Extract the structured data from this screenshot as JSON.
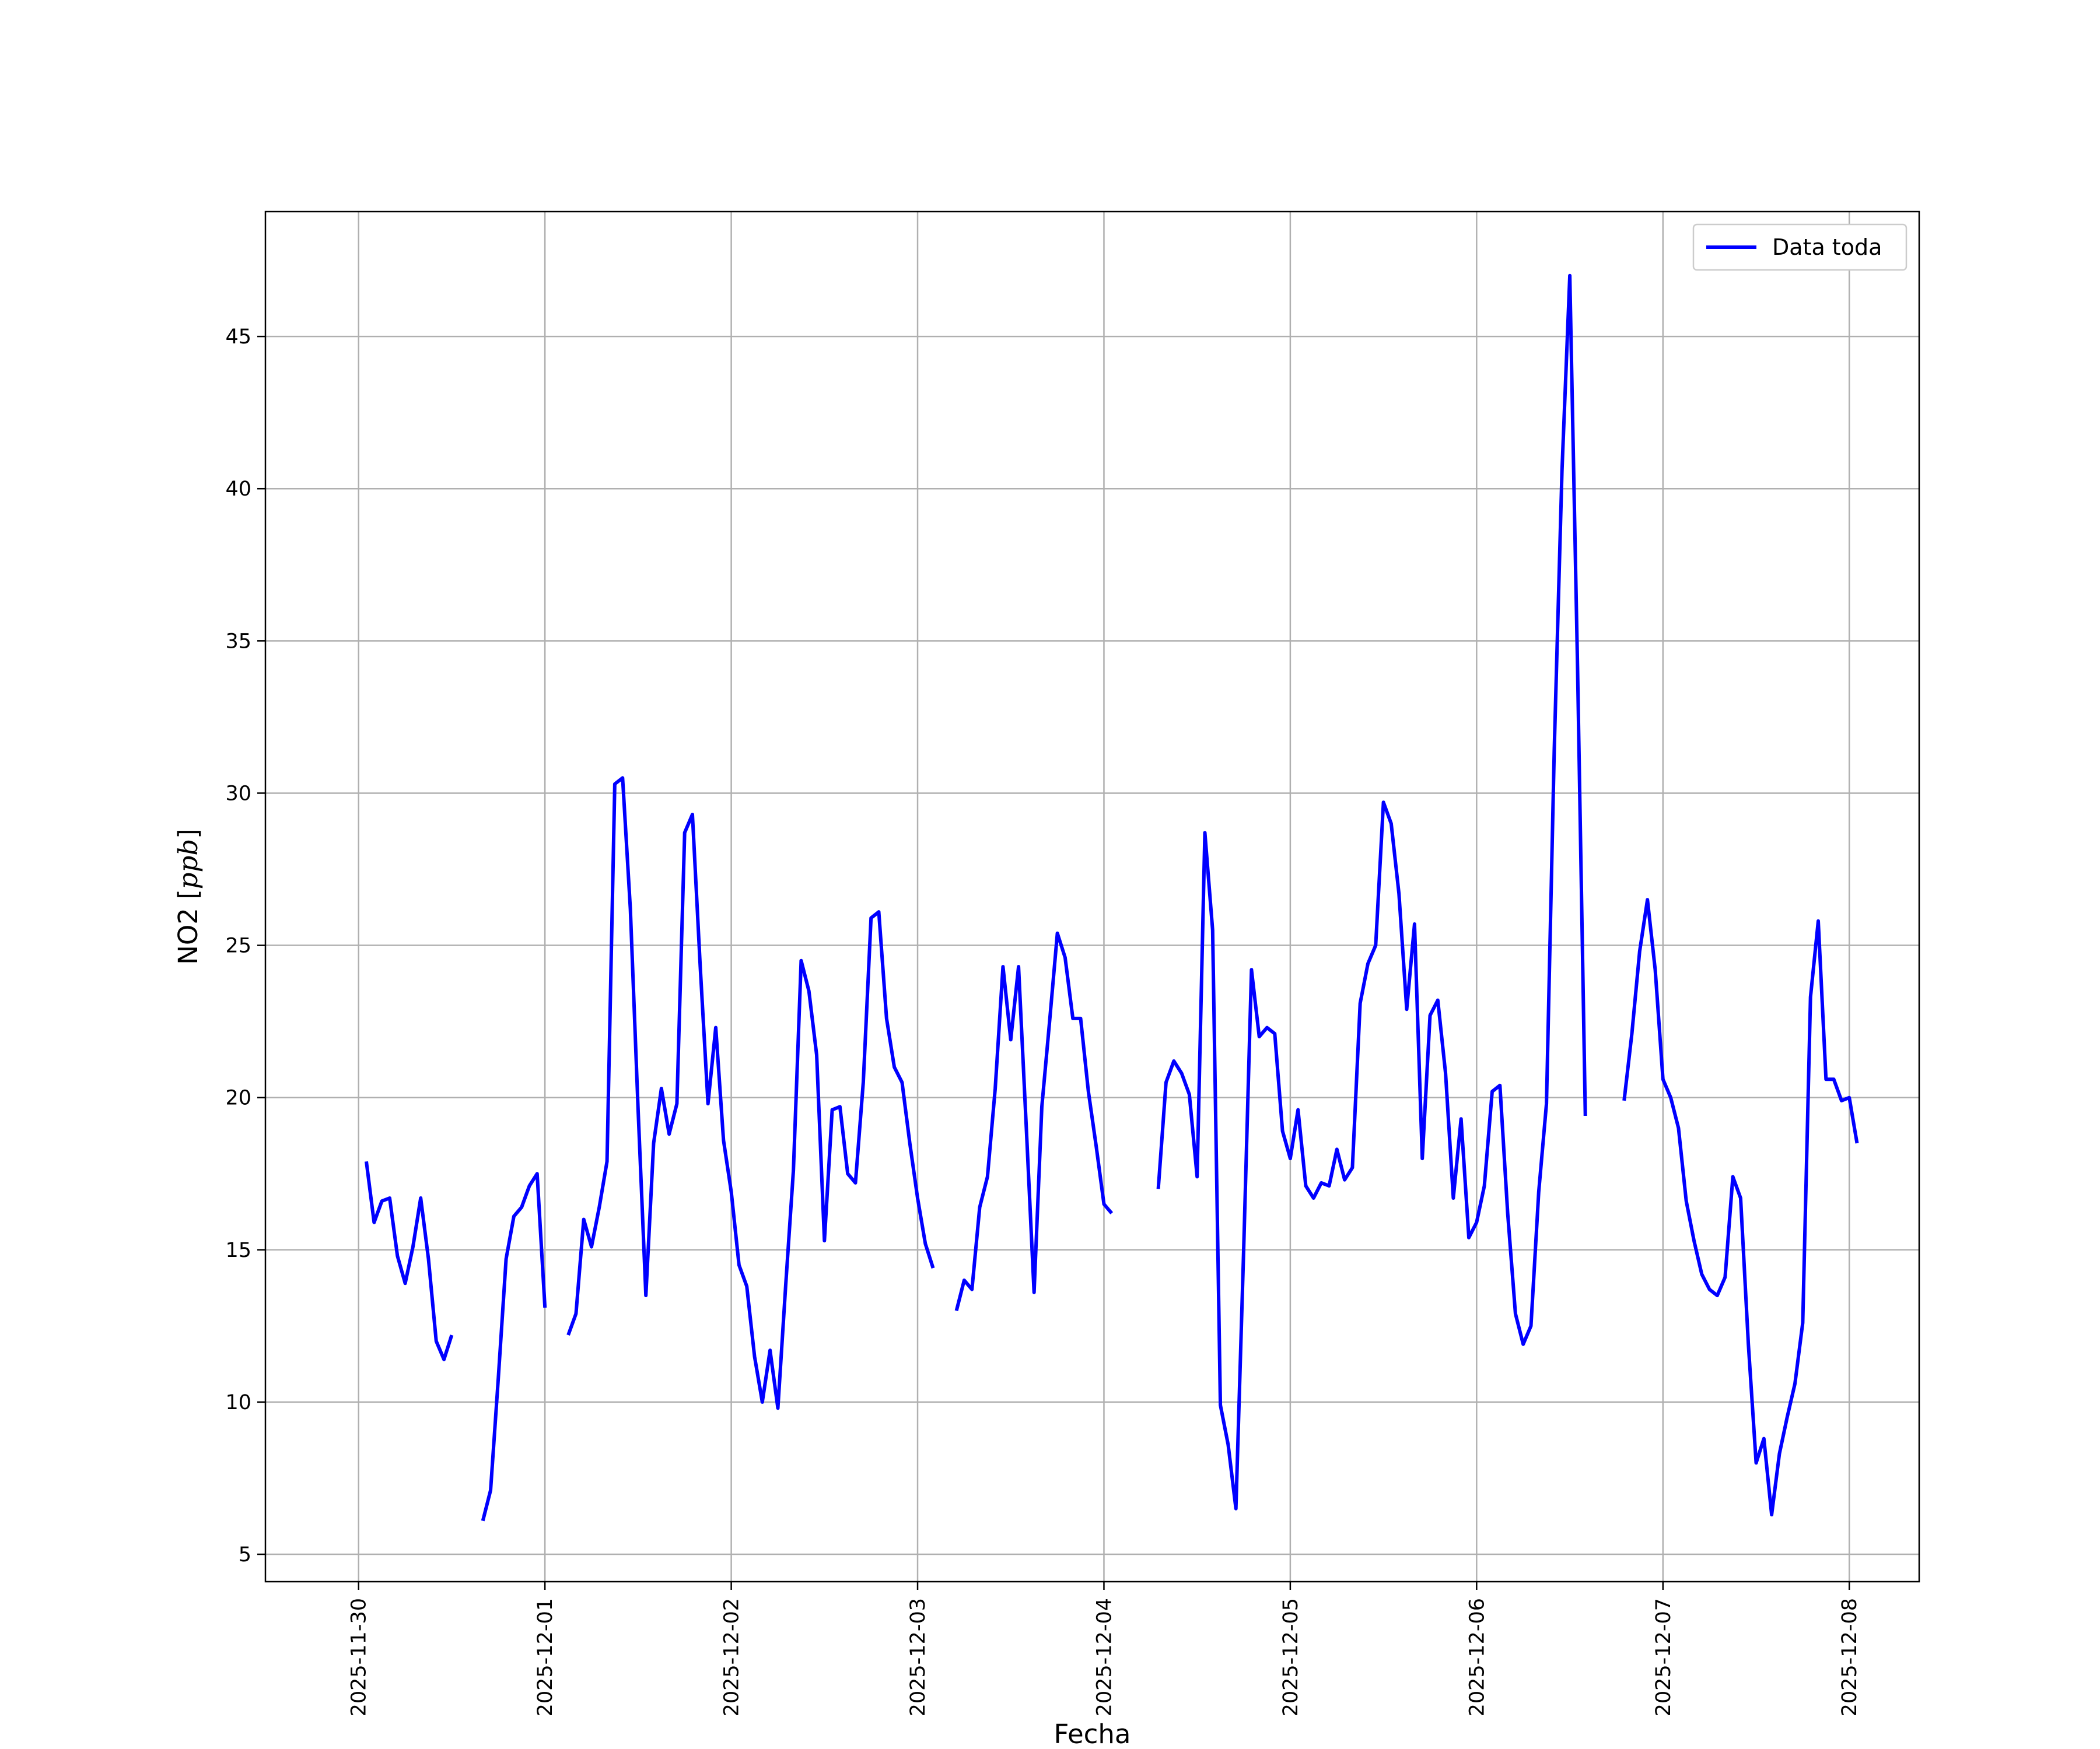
{
  "chart_data": {
    "type": "line",
    "xlabel": "Fecha",
    "ylabel_main": "NO2 [",
    "ylabel_unit": "ppb",
    "ylabel_close": "]",
    "xlim": [
      "2025-11-29T12:00",
      "2025-12-08T09:00"
    ],
    "ylim": [
      4.1,
      49.1
    ],
    "x_tick_labels": [
      "2025-11-30",
      "2025-12-01",
      "2025-12-02",
      "2025-12-03",
      "2025-12-04",
      "2025-12-05",
      "2025-12-06",
      "2025-12-07",
      "2025-12-08"
    ],
    "y_tick_values": [
      5,
      10,
      15,
      20,
      25,
      30,
      35,
      40,
      45
    ],
    "grid": true,
    "legend_position": "top-right",
    "series": [
      {
        "name": "Data toda",
        "color": "#0000ff",
        "segments": [
          [
            [
              "2025-11-30T01:00",
              17.9
            ],
            [
              "2025-11-30T02:00",
              15.9
            ],
            [
              "2025-11-30T03:00",
              16.6
            ],
            [
              "2025-11-30T04:00",
              16.7
            ],
            [
              "2025-11-30T05:00",
              14.8
            ],
            [
              "2025-11-30T06:00",
              13.9
            ],
            [
              "2025-11-30T07:00",
              15.1
            ],
            [
              "2025-11-30T08:00",
              16.7
            ],
            [
              "2025-11-30T09:00",
              14.7
            ],
            [
              "2025-11-30T10:00",
              12.0
            ],
            [
              "2025-11-30T11:00",
              11.4
            ],
            [
              "2025-11-30T12:00",
              12.2
            ]
          ],
          [
            [
              "2025-11-30T16:00",
              6.1
            ],
            [
              "2025-11-30T17:00",
              7.1
            ],
            [
              "2025-11-30T18:00",
              10.8
            ],
            [
              "2025-11-30T19:00",
              14.7
            ],
            [
              "2025-11-30T20:00",
              16.1
            ],
            [
              "2025-11-30T21:00",
              16.4
            ],
            [
              "2025-11-30T22:00",
              17.1
            ],
            [
              "2025-11-30T23:00",
              17.5
            ],
            [
              "2025-12-01T00:00",
              13.1
            ]
          ],
          [
            [
              "2025-12-01T03:00",
              12.2
            ],
            [
              "2025-12-01T04:00",
              12.9
            ],
            [
              "2025-12-01T05:00",
              16.0
            ],
            [
              "2025-12-01T06:00",
              15.1
            ],
            [
              "2025-12-01T07:00",
              16.4
            ],
            [
              "2025-12-01T08:00",
              17.9
            ],
            [
              "2025-12-01T09:00",
              30.3
            ],
            [
              "2025-12-01T10:00",
              30.5
            ],
            [
              "2025-12-01T11:00",
              26.2
            ],
            [
              "2025-12-01T12:00",
              19.6
            ],
            [
              "2025-12-01T13:00",
              13.5
            ],
            [
              "2025-12-01T14:00",
              18.5
            ],
            [
              "2025-12-01T15:00",
              20.3
            ],
            [
              "2025-12-01T16:00",
              18.8
            ],
            [
              "2025-12-01T17:00",
              19.8
            ],
            [
              "2025-12-01T18:00",
              28.7
            ],
            [
              "2025-12-01T19:00",
              29.3
            ],
            [
              "2025-12-01T20:00",
              24.3
            ],
            [
              "2025-12-01T21:00",
              19.8
            ],
            [
              "2025-12-01T22:00",
              22.3
            ],
            [
              "2025-12-01T23:00",
              18.6
            ],
            [
              "2025-12-02T00:00",
              16.9
            ],
            [
              "2025-12-02T01:00",
              14.5
            ],
            [
              "2025-12-02T02:00",
              13.8
            ],
            [
              "2025-12-02T03:00",
              11.5
            ],
            [
              "2025-12-02T04:00",
              10.0
            ],
            [
              "2025-12-02T05:00",
              11.7
            ],
            [
              "2025-12-02T06:00",
              9.8
            ],
            [
              "2025-12-02T07:00",
              13.8
            ],
            [
              "2025-12-02T08:00",
              17.6
            ],
            [
              "2025-12-02T09:00",
              24.5
            ],
            [
              "2025-12-02T10:00",
              23.5
            ],
            [
              "2025-12-02T11:00",
              21.4
            ],
            [
              "2025-12-02T12:00",
              15.3
            ],
            [
              "2025-12-02T13:00",
              19.6
            ],
            [
              "2025-12-02T14:00",
              19.7
            ],
            [
              "2025-12-02T15:00",
              17.5
            ],
            [
              "2025-12-02T16:00",
              17.2
            ],
            [
              "2025-12-02T17:00",
              20.5
            ],
            [
              "2025-12-02T18:00",
              25.9
            ],
            [
              "2025-12-02T19:00",
              26.1
            ],
            [
              "2025-12-02T20:00",
              22.6
            ],
            [
              "2025-12-02T21:00",
              21.0
            ],
            [
              "2025-12-02T22:00",
              20.5
            ],
            [
              "2025-12-02T23:00",
              18.5
            ],
            [
              "2025-12-03T00:00",
              16.7
            ],
            [
              "2025-12-03T01:00",
              15.2
            ],
            [
              "2025-12-03T02:00",
              14.4
            ]
          ],
          [
            [
              "2025-12-03T05:00",
              13.0
            ],
            [
              "2025-12-03T06:00",
              14.0
            ],
            [
              "2025-12-03T07:00",
              13.7
            ],
            [
              "2025-12-03T08:00",
              16.4
            ],
            [
              "2025-12-03T09:00",
              17.4
            ],
            [
              "2025-12-03T10:00",
              20.3
            ],
            [
              "2025-12-03T11:00",
              24.3
            ],
            [
              "2025-12-03T12:00",
              21.9
            ],
            [
              "2025-12-03T13:00",
              24.3
            ],
            [
              "2025-12-03T14:00",
              19.0
            ],
            [
              "2025-12-03T15:00",
              13.6
            ],
            [
              "2025-12-03T16:00",
              19.7
            ],
            [
              "2025-12-03T17:00",
              22.5
            ],
            [
              "2025-12-03T18:00",
              25.4
            ],
            [
              "2025-12-03T19:00",
              24.6
            ],
            [
              "2025-12-03T20:00",
              22.6
            ],
            [
              "2025-12-03T21:00",
              22.6
            ],
            [
              "2025-12-03T22:00",
              20.2
            ],
            [
              "2025-12-03T23:00",
              18.4
            ],
            [
              "2025-12-04T00:00",
              16.5
            ],
            [
              "2025-12-04T01:00",
              16.2
            ]
          ],
          [
            [
              "2025-12-04T07:00",
              17.0
            ],
            [
              "2025-12-04T08:00",
              20.5
            ],
            [
              "2025-12-04T09:00",
              21.2
            ],
            [
              "2025-12-04T10:00",
              20.8
            ],
            [
              "2025-12-04T11:00",
              20.1
            ],
            [
              "2025-12-04T12:00",
              17.4
            ],
            [
              "2025-12-04T13:00",
              28.7
            ],
            [
              "2025-12-04T14:00",
              25.5
            ],
            [
              "2025-12-04T15:00",
              9.9
            ],
            [
              "2025-12-04T16:00",
              8.6
            ],
            [
              "2025-12-04T17:00",
              6.5
            ],
            [
              "2025-12-04T18:00",
              15.0
            ],
            [
              "2025-12-04T19:00",
              24.2
            ],
            [
              "2025-12-04T20:00",
              22.0
            ],
            [
              "2025-12-04T21:00",
              22.3
            ],
            [
              "2025-12-04T22:00",
              22.1
            ],
            [
              "2025-12-04T23:00",
              18.9
            ],
            [
              "2025-12-05T00:00",
              18.0
            ],
            [
              "2025-12-05T01:00",
              19.6
            ],
            [
              "2025-12-05T02:00",
              17.1
            ],
            [
              "2025-12-05T03:00",
              16.7
            ],
            [
              "2025-12-05T04:00",
              17.2
            ],
            [
              "2025-12-05T05:00",
              17.1
            ],
            [
              "2025-12-05T06:00",
              18.3
            ],
            [
              "2025-12-05T07:00",
              17.3
            ],
            [
              "2025-12-05T08:00",
              17.7
            ],
            [
              "2025-12-05T09:00",
              23.1
            ],
            [
              "2025-12-05T10:00",
              24.4
            ],
            [
              "2025-12-05T11:00",
              25.0
            ],
            [
              "2025-12-05T12:00",
              29.7
            ],
            [
              "2025-12-05T13:00",
              29.0
            ],
            [
              "2025-12-05T14:00",
              26.7
            ],
            [
              "2025-12-05T15:00",
              22.9
            ],
            [
              "2025-12-05T16:00",
              25.7
            ],
            [
              "2025-12-05T17:00",
              18.0
            ],
            [
              "2025-12-05T18:00",
              22.7
            ],
            [
              "2025-12-05T19:00",
              23.2
            ],
            [
              "2025-12-05T20:00",
              20.8
            ],
            [
              "2025-12-05T21:00",
              16.7
            ],
            [
              "2025-12-05T22:00",
              19.3
            ],
            [
              "2025-12-05T23:00",
              15.4
            ],
            [
              "2025-12-06T00:00",
              15.9
            ],
            [
              "2025-12-06T01:00",
              17.1
            ],
            [
              "2025-12-06T02:00",
              20.2
            ],
            [
              "2025-12-06T03:00",
              20.4
            ],
            [
              "2025-12-06T04:00",
              16.2
            ],
            [
              "2025-12-06T05:00",
              12.9
            ],
            [
              "2025-12-06T06:00",
              11.9
            ],
            [
              "2025-12-06T07:00",
              12.5
            ],
            [
              "2025-12-06T08:00",
              16.9
            ],
            [
              "2025-12-06T09:00",
              19.8
            ],
            [
              "2025-12-06T10:00",
              31.4
            ],
            [
              "2025-12-06T11:00",
              40.6
            ],
            [
              "2025-12-06T12:00",
              47.0
            ],
            [
              "2025-12-06T13:00",
              34.1
            ],
            [
              "2025-12-06T14:00",
              19.4
            ]
          ],
          [
            [
              "2025-12-06T19:00",
              19.9
            ],
            [
              "2025-12-06T20:00",
              22.1
            ],
            [
              "2025-12-06T21:00",
              24.8
            ],
            [
              "2025-12-06T22:00",
              26.5
            ],
            [
              "2025-12-06T23:00",
              24.2
            ],
            [
              "2025-12-07T00:00",
              20.6
            ],
            [
              "2025-12-07T01:00",
              20.0
            ],
            [
              "2025-12-07T02:00",
              19.0
            ],
            [
              "2025-12-07T03:00",
              16.6
            ],
            [
              "2025-12-07T04:00",
              15.3
            ],
            [
              "2025-12-07T05:00",
              14.2
            ],
            [
              "2025-12-07T06:00",
              13.7
            ],
            [
              "2025-12-07T07:00",
              13.5
            ],
            [
              "2025-12-07T08:00",
              14.1
            ],
            [
              "2025-12-07T09:00",
              17.4
            ],
            [
              "2025-12-07T10:00",
              16.7
            ],
            [
              "2025-12-07T11:00",
              11.9
            ],
            [
              "2025-12-07T12:00",
              8.0
            ],
            [
              "2025-12-07T13:00",
              8.8
            ],
            [
              "2025-12-07T14:00",
              6.3
            ],
            [
              "2025-12-07T15:00",
              8.3
            ],
            [
              "2025-12-07T16:00",
              9.5
            ],
            [
              "2025-12-07T17:00",
              10.6
            ],
            [
              "2025-12-07T18:00",
              12.6
            ],
            [
              "2025-12-07T19:00",
              23.3
            ],
            [
              "2025-12-07T20:00",
              25.8
            ],
            [
              "2025-12-07T21:00",
              20.6
            ],
            [
              "2025-12-07T22:00",
              20.6
            ],
            [
              "2025-12-07T23:00",
              19.9
            ],
            [
              "2025-12-08T00:00",
              20.0
            ],
            [
              "2025-12-08T01:00",
              18.5
            ]
          ]
        ]
      }
    ]
  }
}
